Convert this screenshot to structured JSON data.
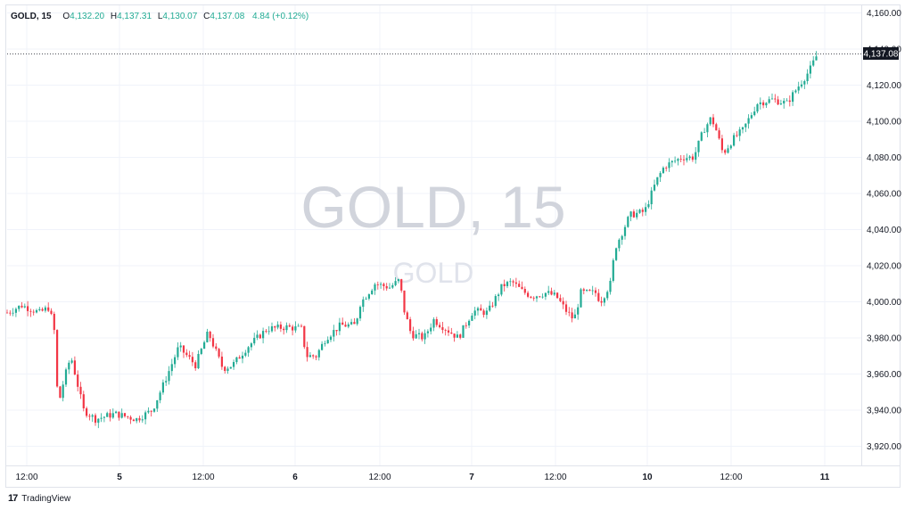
{
  "legend": {
    "symbol": "GOLD, 15",
    "open_label": "O",
    "open": "4,132.20",
    "high_label": "H",
    "high": "4,137.31",
    "low_label": "L",
    "low": "4,130.07",
    "close_label": "C",
    "close": "4,137.08",
    "change": "4.84",
    "change_pct": "(+0.12%)"
  },
  "watermark": {
    "title": "GOLD, 15",
    "subtitle": "GOLD"
  },
  "brand": {
    "logo": "17",
    "name": "TradingView"
  },
  "colors": {
    "up": "#22ab94",
    "down": "#f23645",
    "price_tag_bg": "#131722",
    "grid": "#f0f3fa",
    "watermark": "#d1d4dc"
  },
  "chart_data": {
    "type": "candlestick",
    "title": "GOLD, 15",
    "interval": "15",
    "ylim": [
      3910,
      4160
    ],
    "y_ticks": [
      "3,920.00",
      "3,940.00",
      "3,960.00",
      "3,980.00",
      "4,000.00",
      "4,020.00",
      "4,040.00",
      "4,060.00",
      "4,080.00",
      "4,100.00",
      "4,120.00",
      "4,140.00",
      "4,160.00"
    ],
    "x_ticks": [
      "12:00",
      "5",
      "12:00",
      "6",
      "12:00",
      "7",
      "12:00",
      "10",
      "12:00",
      "11"
    ],
    "last_price": "4,137.08",
    "close_path": [
      [
        0,
        3994
      ],
      [
        0.15,
        3998
      ],
      [
        0.33,
        3994
      ],
      [
        0.43,
        3997
      ],
      [
        0.48,
        3984
      ],
      [
        0.52,
        3942
      ],
      [
        0.58,
        3957
      ],
      [
        0.65,
        3970
      ],
      [
        0.78,
        3940
      ],
      [
        0.9,
        3935
      ],
      [
        1.1,
        3938
      ],
      [
        1.32,
        3935
      ],
      [
        1.48,
        3940
      ],
      [
        1.6,
        3955
      ],
      [
        1.75,
        3975
      ],
      [
        1.92,
        3965
      ],
      [
        2.05,
        3983
      ],
      [
        2.2,
        3963
      ],
      [
        2.3,
        3965
      ],
      [
        2.45,
        3975
      ],
      [
        2.65,
        3985
      ],
      [
        2.85,
        3986
      ],
      [
        3.0,
        3985
      ],
      [
        3.05,
        3970
      ],
      [
        3.15,
        3970
      ],
      [
        3.25,
        3980
      ],
      [
        3.4,
        3987
      ],
      [
        3.55,
        3987
      ],
      [
        3.6,
        3999
      ],
      [
        3.75,
        4010
      ],
      [
        3.9,
        4008
      ],
      [
        4.0,
        4012
      ],
      [
        4.05,
        3995
      ],
      [
        4.12,
        3982
      ],
      [
        4.25,
        3980
      ],
      [
        4.35,
        3990
      ],
      [
        4.5,
        3984
      ],
      [
        4.6,
        3980
      ],
      [
        4.75,
        3995
      ],
      [
        4.9,
        3994
      ],
      [
        5.05,
        4009
      ],
      [
        5.15,
        4011
      ],
      [
        5.25,
        4006
      ],
      [
        5.35,
        4003
      ],
      [
        5.5,
        4005
      ],
      [
        5.6,
        4003
      ],
      [
        5.7,
        3995
      ],
      [
        5.78,
        3990
      ],
      [
        5.85,
        4005
      ],
      [
        6.0,
        4005
      ],
      [
        6.05,
        4000
      ],
      [
        6.1,
        4005
      ],
      [
        6.15,
        4010
      ],
      [
        6.2,
        4030
      ],
      [
        6.35,
        4048
      ],
      [
        6.5,
        4050
      ],
      [
        6.62,
        4067
      ],
      [
        6.7,
        4075
      ],
      [
        6.88,
        4080
      ],
      [
        7.0,
        4080
      ],
      [
        7.1,
        4095
      ],
      [
        7.18,
        4102
      ],
      [
        7.23,
        4095
      ],
      [
        7.3,
        4082
      ],
      [
        7.4,
        4090
      ],
      [
        7.5,
        4095
      ],
      [
        7.65,
        4110
      ],
      [
        7.8,
        4112
      ],
      [
        7.95,
        4110
      ],
      [
        8.05,
        4118
      ],
      [
        8.18,
        4128
      ],
      [
        8.26,
        4137
      ]
    ],
    "x_range": [
      0,
      8.45
    ],
    "candle_spacing": 0.03
  }
}
